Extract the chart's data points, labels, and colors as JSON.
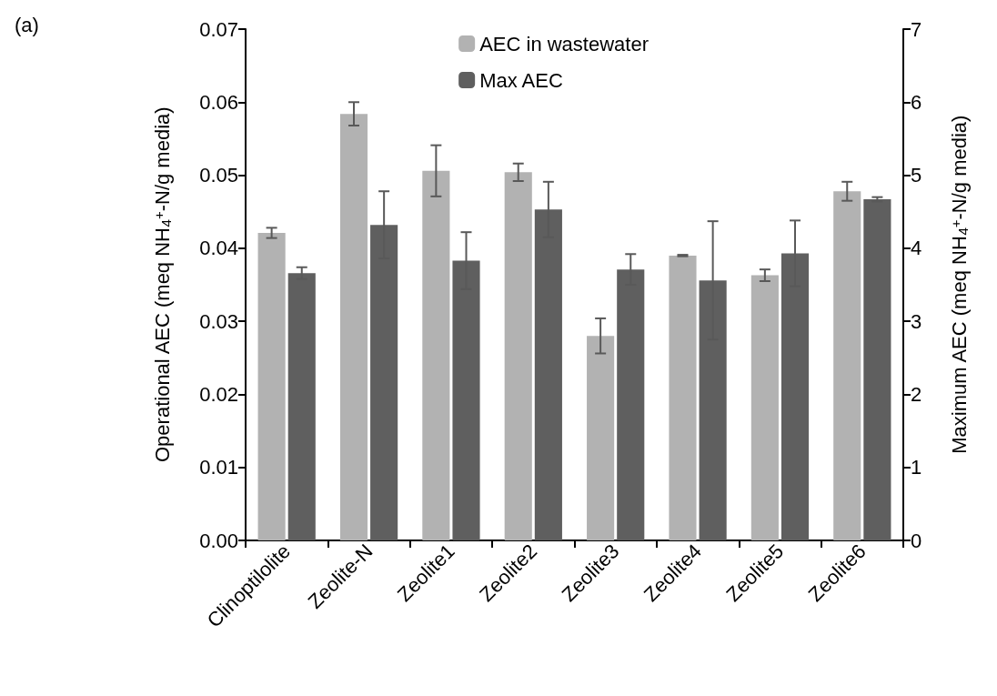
{
  "chart_data": {
    "type": "bar",
    "annotations": [
      "(a)"
    ],
    "ylabel": "Operational AEC (meq NH$_{4}$$^{+}$-N/g media)",
    "y2label": "Maximum AEC (meq NH$_{4}$$^{+}$-N/g media)",
    "categories": [
      "Clinoptilolite",
      "Zeolite-N",
      "Zeolite1",
      "Zeolite2",
      "Zeolite3",
      "Zeolite4",
      "Zeolite5",
      "Zeolite6"
    ],
    "series": [
      {
        "name": "AEC in wastewater",
        "color": "#b2b2b2",
        "values": [
          0.0421,
          0.0584,
          0.0506,
          0.0504,
          0.028,
          0.039,
          0.0363,
          0.0478
        ],
        "errors": [
          0.0007,
          0.0016,
          0.0035,
          0.0012,
          0.0024,
          0.0001,
          0.0008,
          0.0013
        ]
      },
      {
        "name": "Max AEC",
        "color": "#5f5f5f",
        "axis": "y2",
        "values": [
          3.66,
          4.32,
          3.83,
          4.53,
          3.71,
          3.56,
          3.93,
          4.67
        ],
        "errors": [
          0.08,
          0.46,
          0.39,
          0.38,
          0.21,
          0.81,
          0.45,
          0.03
        ]
      }
    ],
    "ylim": [
      0,
      0.07
    ],
    "yticks": [
      {
        "value": 0,
        "label": "0.00"
      },
      {
        "value": 0.01,
        "label": "0.01"
      },
      {
        "value": 0.02,
        "label": "0.02"
      },
      {
        "value": 0.03,
        "label": "0.03"
      },
      {
        "value": 0.04,
        "label": "0.04"
      },
      {
        "value": 0.05,
        "label": "0.05"
      },
      {
        "value": 0.06,
        "label": "0.06"
      },
      {
        "value": 0.07,
        "label": "0.07"
      }
    ],
    "y2lim": [
      0,
      7
    ],
    "y2ticks": [
      0,
      1,
      2,
      3,
      4,
      5,
      6,
      7
    ],
    "legend": "top right",
    "grid": false
  }
}
